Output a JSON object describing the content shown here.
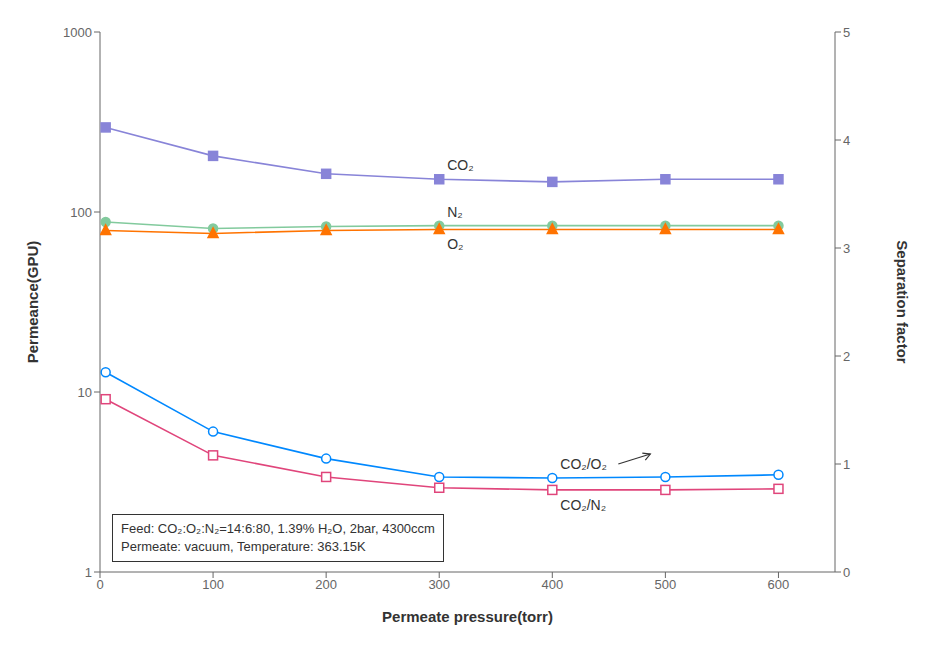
{
  "chart_data": {
    "type": "line",
    "xlabel": "Permeate pressure(torr)",
    "ylabel": "Permeance(GPU)",
    "y2label": "Separation factor",
    "x": [
      5,
      100,
      200,
      300,
      400,
      500,
      600
    ],
    "xlim": [
      0,
      650
    ],
    "xticks": [
      0,
      100,
      200,
      300,
      400,
      500,
      600
    ],
    "ylim": [
      1,
      1000
    ],
    "yticks": [
      1,
      10,
      100,
      1000
    ],
    "log": "y",
    "y2lim": [
      0,
      5
    ],
    "y2ticks": [
      0,
      1,
      2,
      3,
      4,
      5
    ],
    "grid": false,
    "series": [
      {
        "name": "CO₂",
        "color": "#8884d8",
        "marker": "square",
        "values": [
          295,
          205,
          163,
          152,
          147,
          152,
          152
        ]
      },
      {
        "name": "N₂",
        "color": "#82ca9d",
        "marker": "circle",
        "values": [
          88,
          81,
          83,
          84,
          84,
          84,
          84
        ]
      },
      {
        "name": "O₂",
        "color": "#ff7300",
        "marker": "triangle",
        "values": [
          79,
          76,
          79,
          80,
          80,
          80,
          80
        ]
      },
      {
        "name": "CO₂/O₂",
        "color": "#0088fe",
        "marker": "open circle",
        "axis": "y2",
        "values": [
          1.85,
          1.3,
          1.05,
          0.88,
          0.87,
          0.88,
          0.9
        ]
      },
      {
        "name": "CO₂/N₂",
        "color": "#e0457b",
        "marker": "open square",
        "axis": "y2",
        "values": [
          1.6,
          1.08,
          0.88,
          0.78,
          0.76,
          0.76,
          0.77
        ]
      }
    ],
    "annotations": [
      "Feed: CO₂:O₂:N₂=14:6:80, 1.39% H₂O, 2bar, 4300ccm",
      "Permeate: vacuum, Temperature: 363.15K"
    ]
  }
}
